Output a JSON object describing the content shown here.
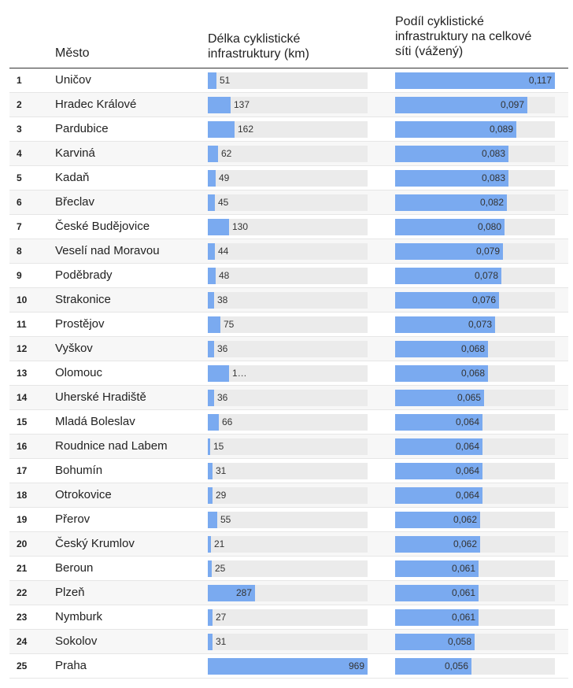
{
  "chart_data": {
    "type": "table",
    "columns": {
      "rank": "",
      "city": "Město",
      "length_line1": "Délka cyklistické",
      "length_line2": "infrastruktury (km)",
      "share_line1": "Podíl cyklistické",
      "share_line2": "infrastruktury na celkové",
      "share_line3": "síti (vážený)"
    },
    "length_max": 969,
    "share_max": 0.117,
    "rows": [
      {
        "rank": "1",
        "city": "Uničov",
        "length": 51,
        "length_label": "51",
        "share": 0.117,
        "share_label": "0,117"
      },
      {
        "rank": "2",
        "city": "Hradec Králové",
        "length": 137,
        "length_label": "137",
        "share": 0.097,
        "share_label": "0,097"
      },
      {
        "rank": "3",
        "city": "Pardubice",
        "length": 162,
        "length_label": "162",
        "share": 0.089,
        "share_label": "0,089"
      },
      {
        "rank": "4",
        "city": "Karviná",
        "length": 62,
        "length_label": "62",
        "share": 0.083,
        "share_label": "0,083"
      },
      {
        "rank": "5",
        "city": "Kadaň",
        "length": 49,
        "length_label": "49",
        "share": 0.083,
        "share_label": "0,083"
      },
      {
        "rank": "6",
        "city": "Břeclav",
        "length": 45,
        "length_label": "45",
        "share": 0.082,
        "share_label": "0,082"
      },
      {
        "rank": "7",
        "city": "České Budějovice",
        "length": 130,
        "length_label": "130",
        "share": 0.08,
        "share_label": "0,080"
      },
      {
        "rank": "8",
        "city": "Veselí nad Moravou",
        "length": 44,
        "length_label": "44",
        "share": 0.079,
        "share_label": "0,079"
      },
      {
        "rank": "9",
        "city": "Poděbrady",
        "length": 48,
        "length_label": "48",
        "share": 0.078,
        "share_label": "0,078"
      },
      {
        "rank": "10",
        "city": "Strakonice",
        "length": 38,
        "length_label": "38",
        "share": 0.076,
        "share_label": "0,076"
      },
      {
        "rank": "11",
        "city": "Prostějov",
        "length": 75,
        "length_label": "75",
        "share": 0.073,
        "share_label": "0,073"
      },
      {
        "rank": "12",
        "city": "Vyškov",
        "length": 36,
        "length_label": "36",
        "share": 0.068,
        "share_label": "0,068"
      },
      {
        "rank": "13",
        "city": "Olomouc",
        "length": 130,
        "length_label": "1…",
        "share": 0.068,
        "share_label": "0,068"
      },
      {
        "rank": "14",
        "city": "Uherské Hradiště",
        "length": 36,
        "length_label": "36",
        "share": 0.065,
        "share_label": "0,065"
      },
      {
        "rank": "15",
        "city": "Mladá Boleslav",
        "length": 66,
        "length_label": "66",
        "share": 0.064,
        "share_label": "0,064"
      },
      {
        "rank": "16",
        "city": "Roudnice nad Labem",
        "length": 15,
        "length_label": "15",
        "share": 0.064,
        "share_label": "0,064"
      },
      {
        "rank": "17",
        "city": "Bohumín",
        "length": 31,
        "length_label": "31",
        "share": 0.064,
        "share_label": "0,064"
      },
      {
        "rank": "18",
        "city": "Otrokovice",
        "length": 29,
        "length_label": "29",
        "share": 0.064,
        "share_label": "0,064"
      },
      {
        "rank": "19",
        "city": "Přerov",
        "length": 55,
        "length_label": "55",
        "share": 0.062,
        "share_label": "0,062"
      },
      {
        "rank": "20",
        "city": "Český Krumlov",
        "length": 21,
        "length_label": "21",
        "share": 0.062,
        "share_label": "0,062"
      },
      {
        "rank": "21",
        "city": "Beroun",
        "length": 25,
        "length_label": "25",
        "share": 0.061,
        "share_label": "0,061"
      },
      {
        "rank": "22",
        "city": "Plzeň",
        "length": 287,
        "length_label": "287",
        "share": 0.061,
        "share_label": "0,061"
      },
      {
        "rank": "23",
        "city": "Nymburk",
        "length": 27,
        "length_label": "27",
        "share": 0.061,
        "share_label": "0,061"
      },
      {
        "rank": "24",
        "city": "Sokolov",
        "length": 31,
        "length_label": "31",
        "share": 0.058,
        "share_label": "0,058"
      },
      {
        "rank": "25",
        "city": "Praha",
        "length": 969,
        "length_label": "969",
        "share": 0.056,
        "share_label": "0,056"
      }
    ]
  },
  "colors": {
    "bar": "#7aaaf0",
    "track": "#ebebeb",
    "row_alt": "#f7f7f7"
  }
}
